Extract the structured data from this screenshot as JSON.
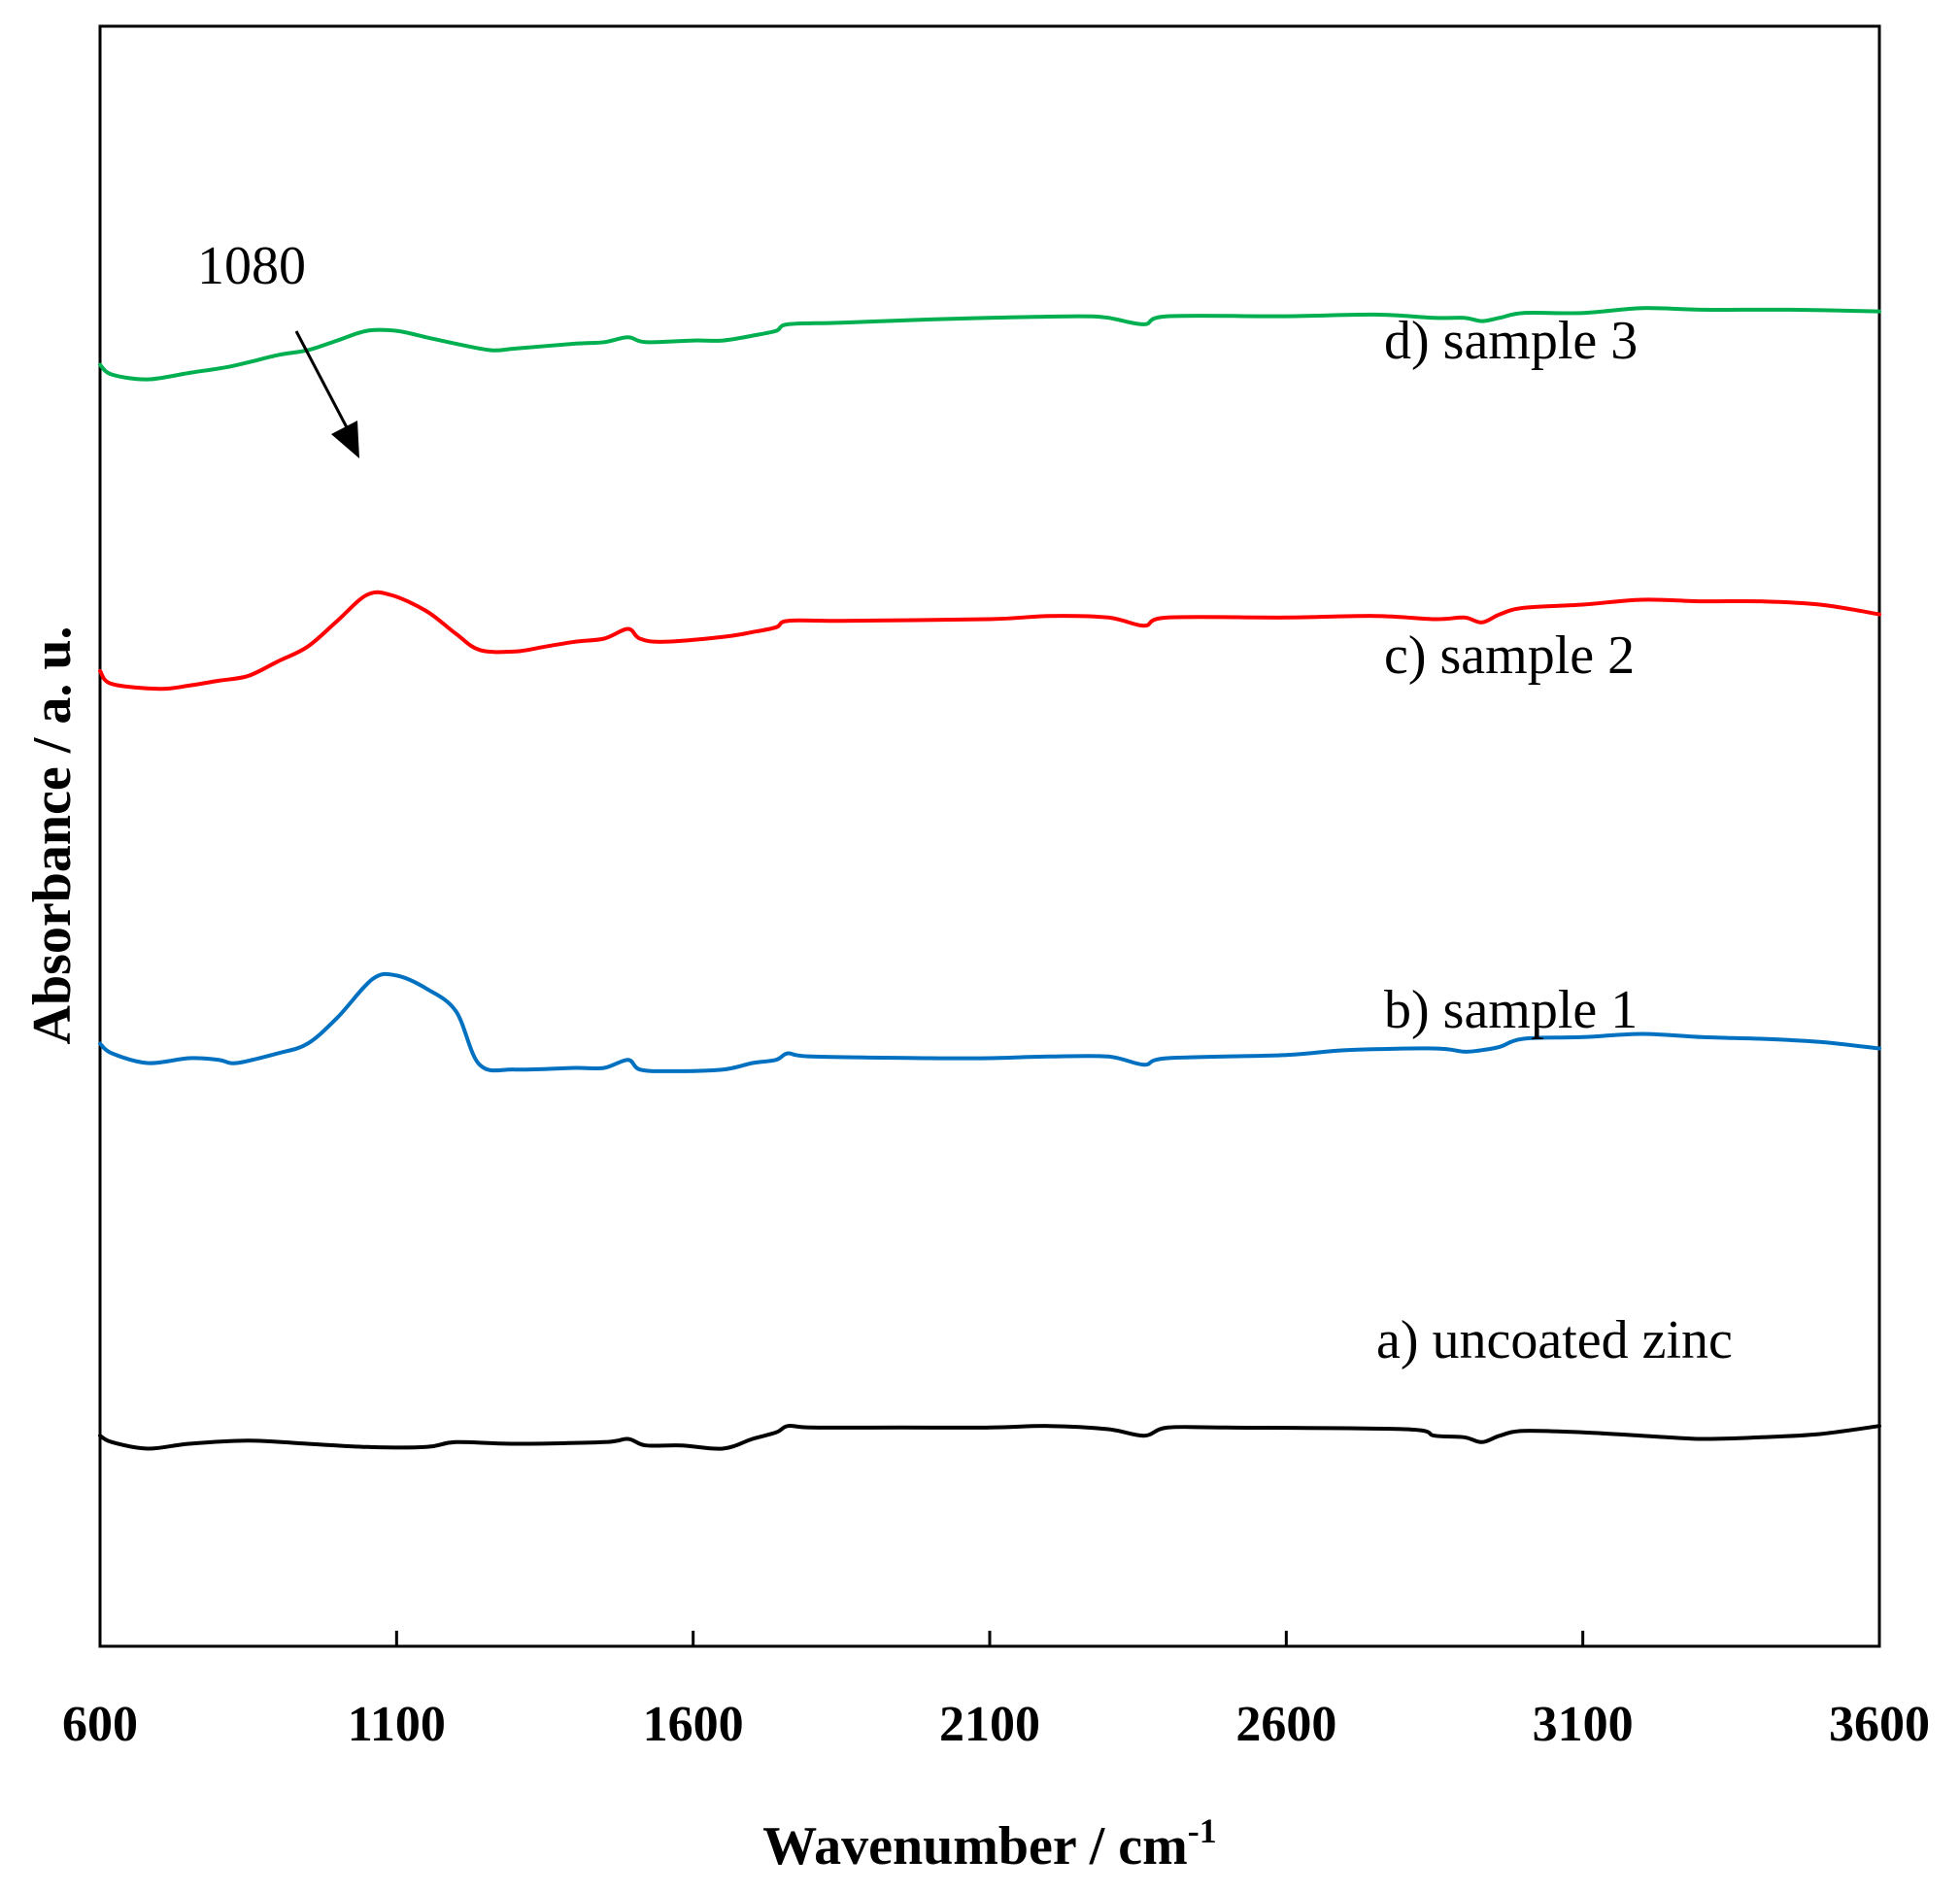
{
  "chart_data": {
    "type": "line",
    "xlabel": "Wavenumber / cm",
    "xlabel_sup": "-1",
    "ylabel": "Absorbance / a. u.",
    "xlim": [
      600,
      3600
    ],
    "ylim": [
      0,
      100
    ],
    "xticks": [
      "600",
      "1100",
      "1600",
      "2100",
      "2600",
      "3100",
      "3600"
    ],
    "grid": false,
    "annotation": {
      "text": "1080",
      "x": 1080
    },
    "series": [
      {
        "name": "a) uncoated zinc",
        "color": "#000000",
        "points": [
          [
            600,
            13.0
          ],
          [
            620,
            12.6
          ],
          [
            680,
            12.2
          ],
          [
            750,
            12.5
          ],
          [
            850,
            12.7
          ],
          [
            950,
            12.5
          ],
          [
            1050,
            12.3
          ],
          [
            1150,
            12.3
          ],
          [
            1200,
            12.6
          ],
          [
            1300,
            12.5
          ],
          [
            1450,
            12.6
          ],
          [
            1490,
            12.8
          ],
          [
            1520,
            12.4
          ],
          [
            1580,
            12.4
          ],
          [
            1650,
            12.2
          ],
          [
            1700,
            12.8
          ],
          [
            1740,
            13.2
          ],
          [
            1760,
            13.6
          ],
          [
            1800,
            13.5
          ],
          [
            1950,
            13.5
          ],
          [
            2100,
            13.5
          ],
          [
            2200,
            13.6
          ],
          [
            2300,
            13.4
          ],
          [
            2360,
            13.0
          ],
          [
            2400,
            13.5
          ],
          [
            2500,
            13.5
          ],
          [
            2800,
            13.4
          ],
          [
            2850,
            13.0
          ],
          [
            2900,
            12.9
          ],
          [
            2930,
            12.6
          ],
          [
            2960,
            13.0
          ],
          [
            3000,
            13.3
          ],
          [
            3100,
            13.2
          ],
          [
            3200,
            13.0
          ],
          [
            3300,
            12.8
          ],
          [
            3400,
            12.9
          ],
          [
            3500,
            13.1
          ],
          [
            3600,
            13.6
          ]
        ]
      },
      {
        "name": "b) sample 1",
        "color": "#0070C0",
        "points": [
          [
            600,
            37.2
          ],
          [
            620,
            36.6
          ],
          [
            680,
            36.0
          ],
          [
            750,
            36.3
          ],
          [
            800,
            36.2
          ],
          [
            830,
            36.0
          ],
          [
            900,
            36.6
          ],
          [
            950,
            37.2
          ],
          [
            1000,
            38.8
          ],
          [
            1060,
            41.2
          ],
          [
            1100,
            41.4
          ],
          [
            1150,
            40.6
          ],
          [
            1200,
            39.2
          ],
          [
            1240,
            35.9
          ],
          [
            1300,
            35.6
          ],
          [
            1400,
            35.7
          ],
          [
            1450,
            35.7
          ],
          [
            1490,
            36.2
          ],
          [
            1510,
            35.6
          ],
          [
            1560,
            35.5
          ],
          [
            1650,
            35.6
          ],
          [
            1700,
            36.0
          ],
          [
            1740,
            36.2
          ],
          [
            1760,
            36.6
          ],
          [
            1800,
            36.4
          ],
          [
            2000,
            36.3
          ],
          [
            2100,
            36.3
          ],
          [
            2200,
            36.4
          ],
          [
            2300,
            36.4
          ],
          [
            2360,
            35.9
          ],
          [
            2400,
            36.3
          ],
          [
            2600,
            36.5
          ],
          [
            2700,
            36.8
          ],
          [
            2850,
            36.9
          ],
          [
            2900,
            36.7
          ],
          [
            2930,
            36.8
          ],
          [
            2960,
            37.0
          ],
          [
            3000,
            37.5
          ],
          [
            3100,
            37.6
          ],
          [
            3200,
            37.8
          ],
          [
            3300,
            37.6
          ],
          [
            3400,
            37.5
          ],
          [
            3500,
            37.3
          ],
          [
            3600,
            36.9
          ]
        ]
      },
      {
        "name": "c) sample 2",
        "color": "#FF0000",
        "points": [
          [
            600,
            60.2
          ],
          [
            620,
            59.4
          ],
          [
            700,
            59.1
          ],
          [
            750,
            59.3
          ],
          [
            800,
            59.6
          ],
          [
            850,
            59.9
          ],
          [
            900,
            60.8
          ],
          [
            950,
            61.7
          ],
          [
            1000,
            63.3
          ],
          [
            1050,
            64.9
          ],
          [
            1090,
            64.9
          ],
          [
            1150,
            63.9
          ],
          [
            1200,
            62.5
          ],
          [
            1240,
            61.5
          ],
          [
            1300,
            61.4
          ],
          [
            1350,
            61.7
          ],
          [
            1400,
            62.0
          ],
          [
            1450,
            62.2
          ],
          [
            1490,
            62.8
          ],
          [
            1510,
            62.2
          ],
          [
            1550,
            62.0
          ],
          [
            1650,
            62.3
          ],
          [
            1700,
            62.6
          ],
          [
            1740,
            62.9
          ],
          [
            1760,
            63.3
          ],
          [
            1850,
            63.3
          ],
          [
            2100,
            63.4
          ],
          [
            2200,
            63.6
          ],
          [
            2300,
            63.5
          ],
          [
            2360,
            63.0
          ],
          [
            2400,
            63.5
          ],
          [
            2600,
            63.5
          ],
          [
            2750,
            63.6
          ],
          [
            2850,
            63.4
          ],
          [
            2900,
            63.5
          ],
          [
            2930,
            63.2
          ],
          [
            2960,
            63.7
          ],
          [
            3000,
            64.1
          ],
          [
            3100,
            64.3
          ],
          [
            3200,
            64.6
          ],
          [
            3300,
            64.5
          ],
          [
            3400,
            64.5
          ],
          [
            3500,
            64.3
          ],
          [
            3600,
            63.7
          ]
        ]
      },
      {
        "name": "d) sample 3",
        "color": "#00B050",
        "points": [
          [
            600,
            79.1
          ],
          [
            620,
            78.5
          ],
          [
            680,
            78.2
          ],
          [
            750,
            78.6
          ],
          [
            820,
            79.0
          ],
          [
            900,
            79.7
          ],
          [
            950,
            80.0
          ],
          [
            1000,
            80.6
          ],
          [
            1050,
            81.2
          ],
          [
            1100,
            81.2
          ],
          [
            1150,
            80.8
          ],
          [
            1200,
            80.4
          ],
          [
            1260,
            80.0
          ],
          [
            1300,
            80.1
          ],
          [
            1400,
            80.4
          ],
          [
            1450,
            80.5
          ],
          [
            1490,
            80.8
          ],
          [
            1520,
            80.5
          ],
          [
            1600,
            80.6
          ],
          [
            1650,
            80.6
          ],
          [
            1700,
            80.9
          ],
          [
            1740,
            81.2
          ],
          [
            1760,
            81.6
          ],
          [
            1850,
            81.7
          ],
          [
            2000,
            81.9
          ],
          [
            2100,
            82.0
          ],
          [
            2250,
            82.1
          ],
          [
            2300,
            82.0
          ],
          [
            2360,
            81.6
          ],
          [
            2400,
            82.1
          ],
          [
            2600,
            82.1
          ],
          [
            2750,
            82.2
          ],
          [
            2850,
            82.0
          ],
          [
            2900,
            82.0
          ],
          [
            2930,
            81.8
          ],
          [
            2960,
            82.0
          ],
          [
            3000,
            82.3
          ],
          [
            3100,
            82.3
          ],
          [
            3200,
            82.6
          ],
          [
            3300,
            82.5
          ],
          [
            3450,
            82.5
          ],
          [
            3600,
            82.4
          ]
        ]
      }
    ]
  }
}
